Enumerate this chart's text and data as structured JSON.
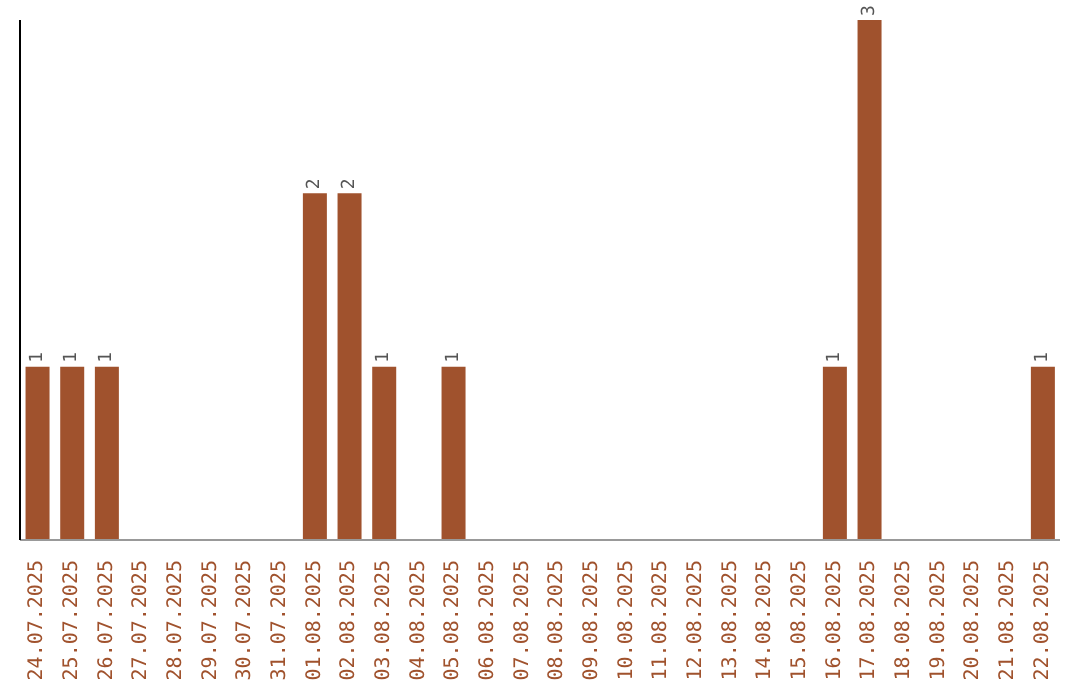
{
  "chart_data": {
    "type": "bar",
    "categories": [
      "24.07.2025",
      "25.07.2025",
      "26.07.2025",
      "27.07.2025",
      "28.07.2025",
      "29.07.2025",
      "30.07.2025",
      "31.07.2025",
      "01.08.2025",
      "02.08.2025",
      "03.08.2025",
      "04.08.2025",
      "05.08.2025",
      "06.08.2025",
      "07.08.2025",
      "08.08.2025",
      "09.08.2025",
      "10.08.2025",
      "11.08.2025",
      "12.08.2025",
      "13.08.2025",
      "14.08.2025",
      "15.08.2025",
      "16.08.2025",
      "17.08.2025",
      "18.08.2025",
      "19.08.2025",
      "20.08.2025",
      "21.08.2025",
      "22.08.2025"
    ],
    "values": [
      1,
      1,
      1,
      0,
      0,
      0,
      0,
      0,
      2,
      2,
      1,
      0,
      1,
      0,
      0,
      0,
      0,
      0,
      0,
      0,
      0,
      0,
      0,
      1,
      3,
      0,
      0,
      0,
      0,
      1
    ],
    "value_labels": [
      "1",
      "1",
      "1",
      null,
      null,
      null,
      null,
      null,
      "2",
      "2",
      "1",
      null,
      "1",
      null,
      null,
      null,
      null,
      null,
      null,
      null,
      null,
      null,
      null,
      "1",
      "3",
      null,
      null,
      null,
      null,
      "1"
    ],
    "color": "#a0522d",
    "grid": false,
    "tick_labels": "x"
  }
}
